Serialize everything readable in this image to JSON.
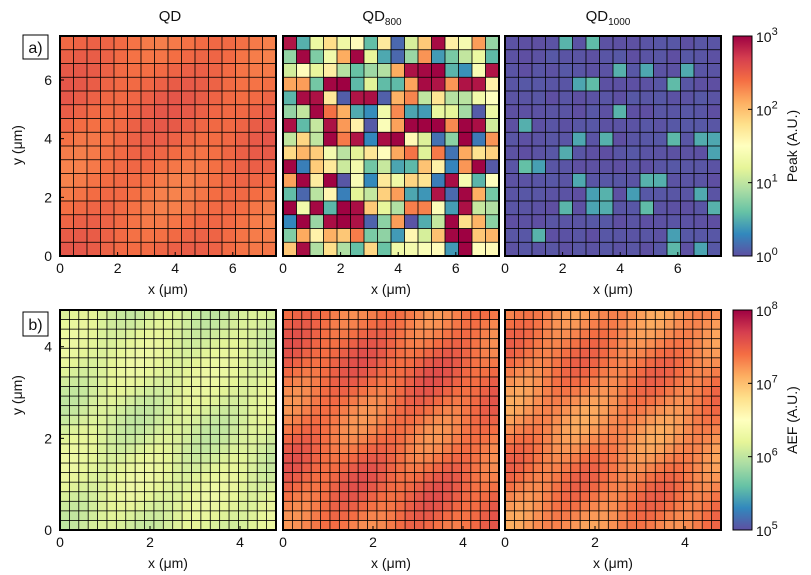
{
  "chart_data": {
    "type": "heatmap",
    "panels_row_a": {
      "label": "a)",
      "colorbar_label": "Peak (A.U.)",
      "colorbar_ticks": [
        {
          "base": "10",
          "exp": "3"
        },
        {
          "base": "10",
          "exp": "2"
        },
        {
          "base": "10",
          "exp": "1"
        },
        {
          "base": "10",
          "exp": "0"
        }
      ],
      "log_range": [
        0,
        3
      ],
      "grid_size": 16,
      "axis_max_um": 7.5,
      "x_ticks": [
        "0",
        "2",
        "4",
        "6"
      ],
      "y_ticks": [
        "0",
        "2",
        "4",
        "6"
      ],
      "xlabel": "x (μm)",
      "ylabel": "y (μm)",
      "panels": [
        {
          "title": "QD",
          "sub": "",
          "pattern": "uniform",
          "log_value_range": [
            2.3,
            2.55
          ]
        },
        {
          "title": "QD",
          "sub": "800",
          "pattern": "random",
          "log_value_range": [
            0,
            3
          ]
        },
        {
          "title": "QD",
          "sub": "1000",
          "pattern": "sparse",
          "log_value_range": [
            0,
            0.5
          ]
        }
      ]
    },
    "panels_row_b": {
      "label": "b)",
      "colorbar_label": "AEF (A.U.)",
      "colorbar_ticks": [
        {
          "base": "10",
          "exp": "8"
        },
        {
          "base": "10",
          "exp": "7"
        },
        {
          "base": "10",
          "exp": "6"
        },
        {
          "base": "10",
          "exp": "5"
        }
      ],
      "log_range": [
        5,
        8
      ],
      "grid_size": 23,
      "axis_max_um": 4.8,
      "x_ticks": [
        "0",
        "2",
        "4"
      ],
      "y_ticks": [
        "0",
        "2",
        "4"
      ],
      "xlabel": "x (μm)",
      "ylabel": "y (μm)",
      "panels": [
        {
          "title": "",
          "sub": "",
          "pattern": "uniform",
          "log_value_range": [
            6.0,
            6.3
          ]
        },
        {
          "title": "",
          "sub": "",
          "pattern": "uniform",
          "log_value_range": [
            7.2,
            7.6
          ]
        },
        {
          "title": "",
          "sub": "",
          "pattern": "uniform",
          "log_value_range": [
            7.1,
            7.5
          ]
        }
      ]
    }
  }
}
